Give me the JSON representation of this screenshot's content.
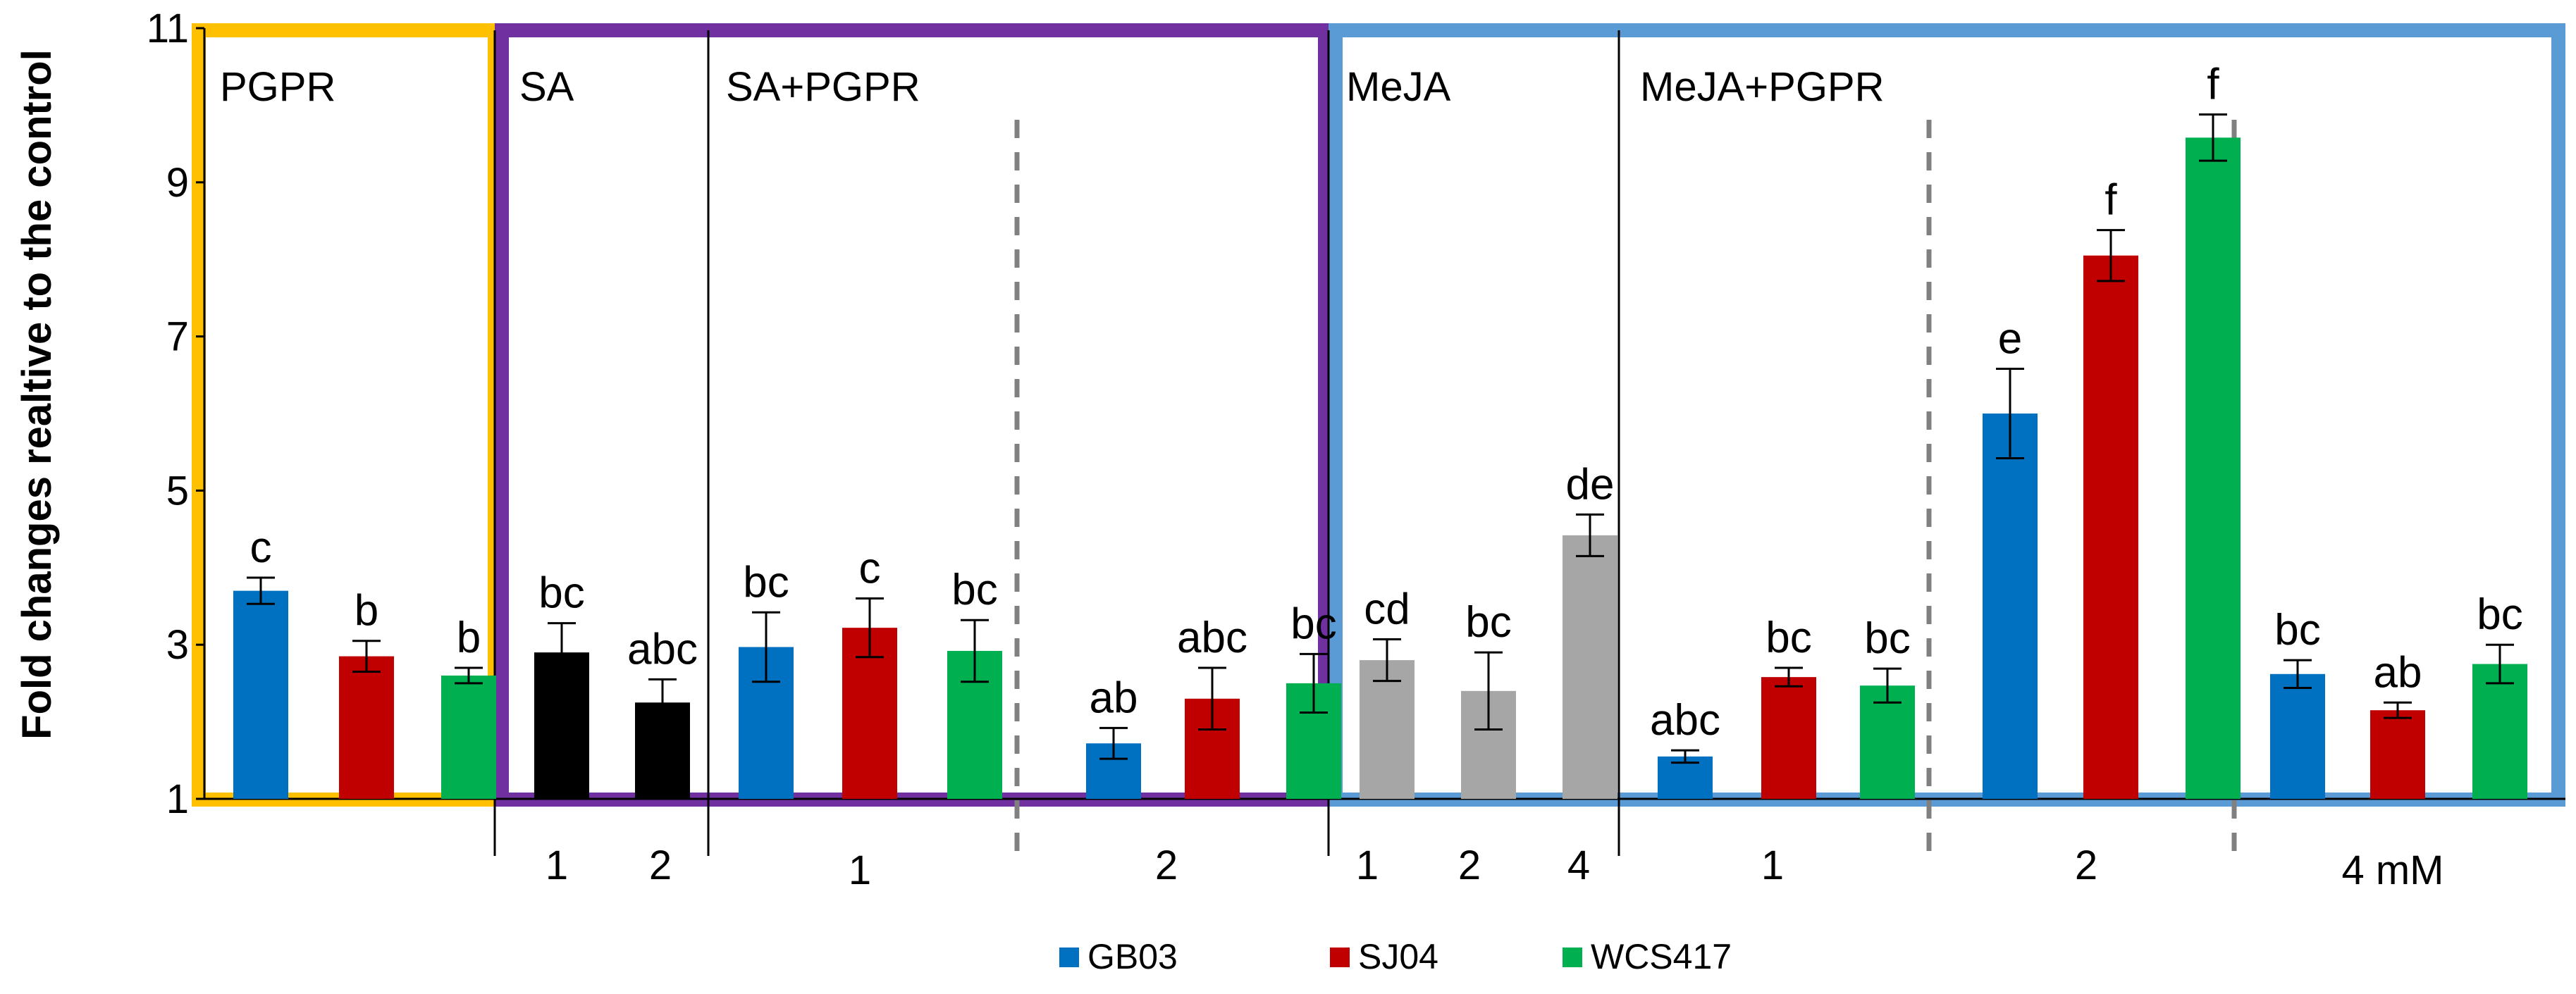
{
  "chart_data": {
    "type": "bar",
    "title": "",
    "xlabel": "",
    "ylabel": "Fold changes realtive to the control",
    "ylim": [
      1,
      11
    ],
    "yticks": [
      "1",
      "3",
      "5",
      "7",
      "9",
      "11"
    ],
    "grid": false,
    "legend": [
      {
        "name": "GB03",
        "color": "#0070C0"
      },
      {
        "name": "SJ04",
        "color": "#C00000"
      },
      {
        "name": "WCS417",
        "color": "#00B050"
      }
    ],
    "panel_labels": [
      "PGPR",
      "SA",
      "SA+PGPR",
      "MeJA",
      "MeJA+PGPR"
    ],
    "group_labels": [
      "1",
      "2",
      "1",
      "2",
      "1",
      "2",
      "4",
      "1",
      "2",
      "4 mM"
    ],
    "bars": [
      {
        "value": 3.7,
        "error": 0.17,
        "letter": "c",
        "color": "#0070C0"
      },
      {
        "value": 2.85,
        "error": 0.2,
        "letter": "b",
        "color": "#C00000"
      },
      {
        "value": 2.6,
        "error": 0.1,
        "letter": "b",
        "color": "#00B050"
      },
      {
        "value": 2.9,
        "error": 0.38,
        "letter": "bc",
        "color": "#000000"
      },
      {
        "value": 2.25,
        "error": 0.3,
        "letter": "abc",
        "color": "#000000"
      },
      {
        "value": 2.97,
        "error": 0.45,
        "letter": "bc",
        "color": "#0070C0"
      },
      {
        "value": 3.22,
        "error": 0.38,
        "letter": "c",
        "color": "#C00000"
      },
      {
        "value": 2.92,
        "error": 0.4,
        "letter": "bc",
        "color": "#00B050"
      },
      {
        "value": 1.72,
        "error": 0.2,
        "letter": "ab",
        "color": "#0070C0"
      },
      {
        "value": 2.3,
        "error": 0.4,
        "letter": "abc",
        "color": "#C00000"
      },
      {
        "value": 2.5,
        "error": 0.38,
        "letter": "bc",
        "color": "#00B050"
      },
      {
        "value": 2.8,
        "error": 0.27,
        "letter": "cd",
        "color": "#A6A6A6"
      },
      {
        "value": 2.4,
        "error": 0.5,
        "letter": "bc",
        "color": "#A6A6A6"
      },
      {
        "value": 4.42,
        "error": 0.27,
        "letter": "de",
        "color": "#A6A6A6"
      },
      {
        "value": 1.55,
        "error": 0.08,
        "letter": "abc",
        "color": "#0070C0"
      },
      {
        "value": 2.58,
        "error": 0.12,
        "letter": "bc",
        "color": "#C00000"
      },
      {
        "value": 2.47,
        "error": 0.22,
        "letter": "bc",
        "color": "#00B050"
      },
      {
        "value": 6.0,
        "error": 0.58,
        "letter": "e",
        "color": "#0070C0"
      },
      {
        "value": 8.05,
        "error": 0.33,
        "letter": "f",
        "color": "#C00000"
      },
      {
        "value": 9.58,
        "error": 0.3,
        "letter": "f",
        "color": "#00B050"
      },
      {
        "value": 2.62,
        "error": 0.18,
        "letter": "bc",
        "color": "#0070C0"
      },
      {
        "value": 2.15,
        "error": 0.1,
        "letter": "ab",
        "color": "#C00000"
      },
      {
        "value": 2.75,
        "error": 0.25,
        "letter": "bc",
        "color": "#00B050"
      }
    ]
  },
  "colors": {
    "frame_pgpr": "#FFC000",
    "frame_sa": "#7030A0",
    "frame_meja": "#5B9BD5"
  }
}
